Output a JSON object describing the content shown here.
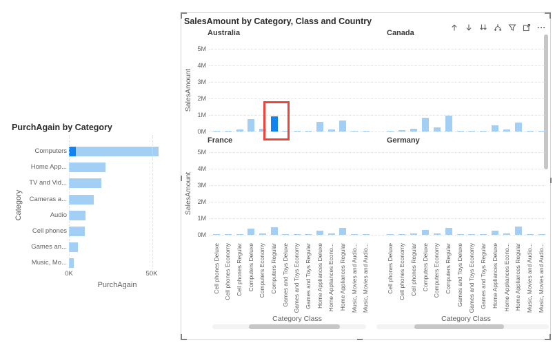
{
  "left_visual": {
    "title": "PurchAgain by Category"
  },
  "right_visual": {
    "title": "SalesAmount by Category, Class and Country",
    "toolbar_icons": [
      {
        "name": "drill-up-icon"
      },
      {
        "name": "drill-down-icon"
      },
      {
        "name": "go-to-next-level-icon"
      },
      {
        "name": "expand-all-icon"
      },
      {
        "name": "filter-icon"
      },
      {
        "name": "focus-mode-icon"
      },
      {
        "name": "more-options-icon"
      }
    ]
  },
  "annotation": {
    "shape": "red-rectangle",
    "color": "#F24139",
    "target": "Australia / Computers Regular bar"
  },
  "colors": {
    "bar_light": "#A3CFF5",
    "bar_highlight": "#1184F0",
    "grid": "#E1E1E1",
    "text_muted": "#605E5C",
    "text_dark": "#252423",
    "scroll_thumb": "#C6C6C6",
    "scroll_track": "#F3F3F3",
    "frame": "#D6D4D2",
    "annotation_red": "#F24139"
  },
  "chart_data": [
    {
      "type": "bar",
      "orientation": "horizontal",
      "title": "PurchAgain by Category",
      "xlabel": "PurchAgain",
      "ylabel": "Category",
      "xticks": [
        "0K",
        "50K"
      ],
      "xlim": [
        0,
        55000
      ],
      "grid": "dotted-vertical",
      "categories": [
        "Computers",
        "Home App...",
        "TV and Vid...",
        "Cameras a...",
        "Audio",
        "Cell phones",
        "Games an...",
        "Music, Mo..."
      ],
      "values": [
        54000,
        22000,
        19500,
        15000,
        10000,
        9500,
        5500,
        3000
      ],
      "highlight_values": [
        4000,
        0,
        0,
        0,
        0,
        0,
        0,
        0
      ]
    },
    {
      "type": "bar",
      "small_multiples": true,
      "title": "SalesAmount by Category, Class and Country",
      "xlabel": "Category Class",
      "ylabel": "SalesAmount",
      "yticks": [
        "5M",
        "4M",
        "3M",
        "2M",
        "1M",
        "0M"
      ],
      "ylim": [
        0,
        5000000
      ],
      "grid": "dotted-horizontal",
      "categories": [
        "Cell phones Deluxe",
        "Cell phones Economy",
        "Cell phones Regular",
        "Computers Deluxe",
        "Computers Economy",
        "Computers Regular",
        "Games and Toys Deluxe",
        "Games and Toys Economy",
        "Games and Toys Regular",
        "Home Appliances Deluxe",
        "Home Appliances Econo...",
        "Home Appliances Regular",
        "Music, Movies and Audio...",
        "Music, Movies and Audio..."
      ],
      "series": [
        {
          "name": "Australia",
          "values": [
            60000,
            40000,
            120000,
            760000,
            180000,
            920000,
            30000,
            30000,
            40000,
            600000,
            110000,
            650000,
            40000,
            30000
          ]
        },
        {
          "name": "Canada",
          "values": [
            60000,
            70000,
            160000,
            840000,
            260000,
            970000,
            50000,
            50000,
            60000,
            380000,
            140000,
            560000,
            40000,
            40000
          ]
        },
        {
          "name": "France",
          "values": [
            30000,
            30000,
            60000,
            360000,
            80000,
            450000,
            30000,
            30000,
            30000,
            230000,
            80000,
            420000,
            30000,
            20000
          ]
        },
        {
          "name": "Germany",
          "values": [
            30000,
            40000,
            80000,
            300000,
            70000,
            400000,
            30000,
            30000,
            40000,
            250000,
            100000,
            500000,
            30000,
            20000
          ]
        }
      ],
      "selected": {
        "series": "Australia",
        "category": "Computers Regular"
      }
    }
  ]
}
